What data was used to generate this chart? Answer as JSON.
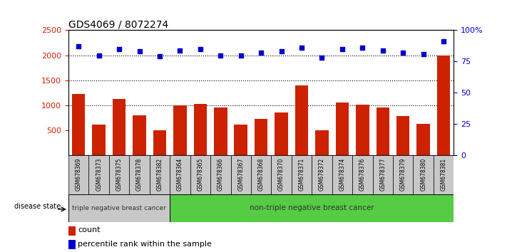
{
  "title": "GDS4069 / 8072274",
  "samples": [
    "GSM678369",
    "GSM678373",
    "GSM678375",
    "GSM678378",
    "GSM678382",
    "GSM678364",
    "GSM678365",
    "GSM678366",
    "GSM678367",
    "GSM678368",
    "GSM678370",
    "GSM678371",
    "GSM678372",
    "GSM678374",
    "GSM678376",
    "GSM678377",
    "GSM678379",
    "GSM678380",
    "GSM678381"
  ],
  "counts": [
    1220,
    610,
    1130,
    800,
    490,
    1000,
    1020,
    950,
    610,
    720,
    850,
    1390,
    490,
    1050,
    1010,
    950,
    780,
    630,
    2000
  ],
  "percentiles": [
    87,
    80,
    85,
    83,
    79,
    84,
    85,
    80,
    80,
    82,
    83,
    86,
    78,
    85,
    86,
    84,
    82,
    81,
    91
  ],
  "ylim_left": [
    0,
    2500
  ],
  "ylim_right": [
    0,
    100
  ],
  "yticks_left": [
    500,
    1000,
    1500,
    2000,
    2500
  ],
  "yticks_right": [
    0,
    25,
    50,
    75,
    100
  ],
  "ytick_labels_right": [
    "0",
    "25",
    "50",
    "75",
    "100%"
  ],
  "grid_yticks": [
    1000,
    1500,
    2000
  ],
  "bar_color": "#cc2200",
  "dot_color": "#0000cc",
  "grid_color": "#000000",
  "group1_label": "triple negative breast cancer",
  "group2_label": "non-triple negative breast cancer",
  "group1_count": 5,
  "group2_count": 14,
  "disease_state_label": "disease state",
  "legend_count": "count",
  "legend_percentile": "percentile rank within the sample",
  "bg_color": "#ffffff",
  "group1_bg": "#c8c8c8",
  "group2_bg": "#55cc44",
  "title_fontsize": 10,
  "tick_label_color_left": "#cc2200",
  "tick_label_color_right": "#0000cc"
}
